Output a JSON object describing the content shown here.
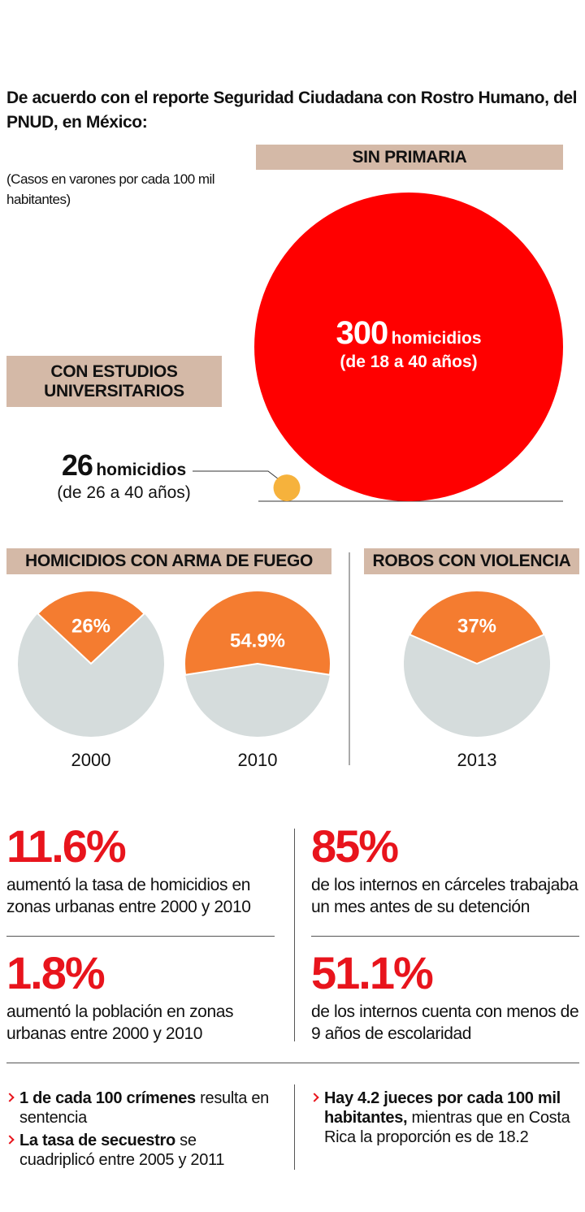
{
  "intro": "De acuerdo con el reporte Seguridad Ciudadana con Rostro Humano, del PNUD, en México:",
  "chart_data": [
    {
      "type": "bubble",
      "subtitle": "(Casos en varones por cada 100 mil habitantes)",
      "categories": [
        "SIN PRIMARIA",
        "CON ESTUDIOS UNIVERSITARIOS"
      ],
      "values": [
        300,
        26
      ],
      "units": [
        "homicidios",
        "homicidios"
      ],
      "details": [
        "(de 18 a 40 años)",
        "(de 26 a 40 años)"
      ],
      "colors": [
        "#ff0000",
        "#f6b23c"
      ]
    },
    {
      "type": "pie",
      "title": "HOMICIDIOS CON ARMA DE FUEGO",
      "categories": [
        "2000",
        "2010"
      ],
      "values": [
        26,
        54.9
      ],
      "value_labels": [
        "26%",
        "54.9%"
      ],
      "color": "#f47c30",
      "rest_color": "#d5dcdc"
    },
    {
      "type": "pie",
      "title": "ROBOS CON VIOLENCIA",
      "categories": [
        "2013"
      ],
      "values": [
        37
      ],
      "value_labels": [
        "37%"
      ],
      "color": "#f47c30",
      "rest_color": "#d5dcdc"
    }
  ],
  "stats": [
    {
      "value": "11.6%",
      "text": "aumentó la tasa de homicidios en zonas urbanas entre 2000 y 2010"
    },
    {
      "value": "85%",
      "text": "de los internos en cárceles trabajaba un mes antes de su detención"
    },
    {
      "value": "1.8%",
      "text": "aumentó la población en zonas urbanas entre 2000 y 2010"
    },
    {
      "value": "51.1%",
      "text": "de los internos cuenta con menos de 9 años de escolaridad"
    }
  ],
  "notes": {
    "left": [
      {
        "bold": "1 de cada 100 crímenes",
        "text": " resulta en sentencia"
      },
      {
        "bold": "La tasa de secuestro",
        "text": " se cuadriplicó entre 2005 y 2011"
      }
    ],
    "right": [
      {
        "bold": "Hay 4.2 jueces por cada 100 mil habitantes,",
        "text": " mientras que en Costa Rica la proporción es de 18.2"
      }
    ]
  }
}
